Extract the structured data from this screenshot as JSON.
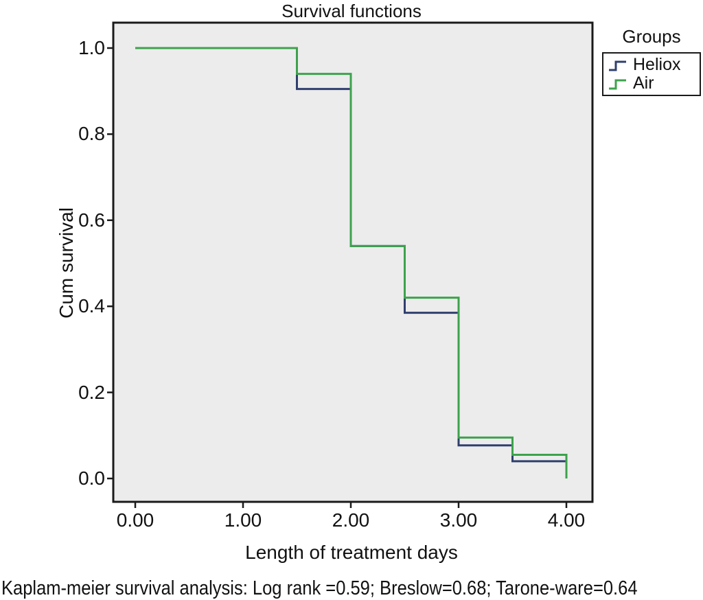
{
  "title": "Survival functions",
  "axes": {
    "xlabel": "Length of treatment days",
    "ylabel": "Cum survival"
  },
  "legend": {
    "title": "Groups",
    "items": [
      {
        "label": "Heliox",
        "color": "#2f3f6e"
      },
      {
        "label": "Air",
        "color": "#3da24c"
      }
    ]
  },
  "caption": "Kaplam-meier survival analysis: Log rank =0.59; Breslow=0.68; Tarone-ware=0.64",
  "colors": {
    "plot_background": "#ececec",
    "frame": "#1a1a1a",
    "heliox_line": "#2f3f6e",
    "air_line": "#3da24c"
  },
  "chart_data": {
    "type": "line",
    "subtype": "kaplan-meier-step",
    "title": "Survival functions",
    "xlabel": "Length of treatment days",
    "ylabel": "Cum survival",
    "xlim": [
      0,
      4
    ],
    "ylim": [
      0,
      1
    ],
    "x_ticks": [
      0,
      1,
      2,
      3,
      4
    ],
    "x_tick_labels": [
      "0.00",
      "1.00",
      "2.00",
      "3.00",
      "4.00"
    ],
    "y_ticks": [
      0,
      0.2,
      0.4,
      0.6,
      0.8,
      1
    ],
    "y_tick_labels": [
      "0.0",
      "0.2",
      "0.4",
      "0.6",
      "0.8",
      "1.0"
    ],
    "grid": false,
    "legend_position": "outside-top-right",
    "series": [
      {
        "name": "Heliox",
        "color": "#2f3f6e",
        "steps": [
          [
            0,
            1.0
          ],
          [
            1.5,
            0.905
          ],
          [
            2.0,
            0.54
          ],
          [
            2.5,
            0.385
          ],
          [
            3.0,
            0.077
          ],
          [
            3.5,
            0.04
          ],
          [
            4.0,
            0.0
          ]
        ]
      },
      {
        "name": "Air",
        "color": "#3da24c",
        "steps": [
          [
            0,
            1.0
          ],
          [
            1.5,
            0.94
          ],
          [
            2.0,
            0.54
          ],
          [
            2.5,
            0.42
          ],
          [
            3.0,
            0.095
          ],
          [
            3.5,
            0.055
          ],
          [
            4.0,
            0.0
          ]
        ]
      }
    ]
  }
}
